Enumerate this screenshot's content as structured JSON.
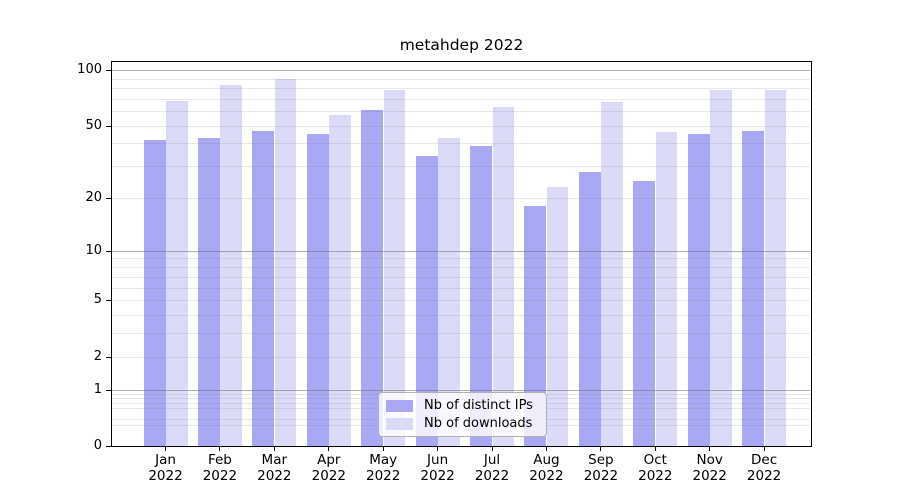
{
  "title": "metahdep 2022",
  "chart_data": {
    "type": "bar",
    "categories": [
      "Jan",
      "Feb",
      "Mar",
      "Apr",
      "May",
      "Jun",
      "Jul",
      "Aug",
      "Sep",
      "Oct",
      "Nov",
      "Dec"
    ],
    "category_year": "2022",
    "series": [
      {
        "name": "Nb of distinct IPs",
        "color": "#a8a8f5",
        "values": [
          42,
          43,
          47,
          45,
          61,
          34,
          39,
          18,
          28,
          25,
          45,
          47
        ]
      },
      {
        "name": "Nb of downloads",
        "color": "#dbdbf8",
        "values": [
          68,
          83,
          90,
          57,
          78,
          43,
          63,
          23,
          67,
          46,
          78,
          78
        ]
      }
    ],
    "yscale": "log10(1+x)",
    "ylim": [
      0,
      110
    ],
    "yticks": [
      0,
      1,
      2,
      5,
      10,
      20,
      50,
      100
    ],
    "major_gridlines": [
      1,
      10,
      100
    ],
    "minor_gridlines": [
      0.3,
      0.4,
      0.6,
      0.7,
      0.8,
      0.9,
      2,
      3,
      4,
      5,
      6,
      7,
      8,
      9,
      20,
      30,
      40,
      50,
      60,
      70,
      80,
      90
    ],
    "grid": true,
    "legend_position": "bottom-center",
    "xlabel": "",
    "ylabel": ""
  }
}
